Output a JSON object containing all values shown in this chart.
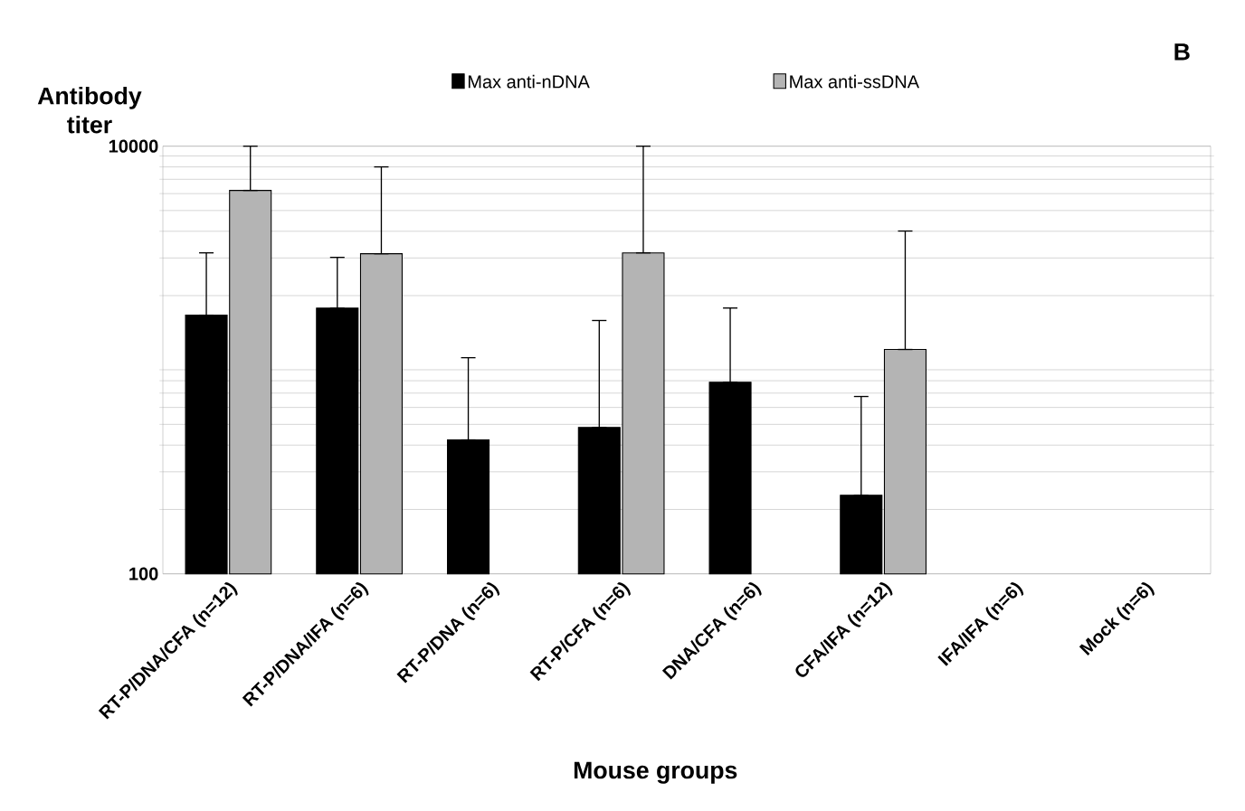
{
  "chart_data": {
    "type": "bar",
    "ylabel": "Antibody titer",
    "xlabel": "Mouse groups",
    "categories": [
      "RT-P/DNA/CFA (n=12)",
      "RT-P/DNA/IFA  (n=6)",
      "RT-P/DNA  (n=6)",
      "RT-P/CFA  (n=6)",
      "DNA/CFA (n=6)",
      "CFA/IFA (n=12)",
      "IFA/IFA (n=6)",
      "Mock (n=6)"
    ],
    "series": [
      {
        "name": "Max anti-nDNA",
        "color": "#000000",
        "values": [
          1620,
          1750,
          423,
          484,
          787,
          233,
          null,
          null
        ],
        "errors": [
          [
            1620,
            3170
          ],
          [
            1750,
            3020
          ],
          [
            423,
            1025
          ],
          [
            484,
            1530
          ],
          [
            787,
            1750
          ],
          [
            233,
            675
          ],
          null,
          null
        ]
      },
      {
        "name": "Max anti-ssDNA",
        "color": "#b4b4b4",
        "values": [
          6210,
          3140,
          null,
          3170,
          null,
          1120,
          null,
          null
        ],
        "errors": [
          [
            6210,
            10000
          ],
          [
            3140,
            8000
          ],
          null,
          [
            3170,
            10000
          ],
          null,
          [
            1120,
            4010
          ],
          null,
          null
        ]
      }
    ],
    "ylim": [
      100,
      10000
    ],
    "yticks": [
      100,
      10000
    ],
    "log": "y",
    "grid": "y",
    "legend": "top",
    "annotations": [
      "B"
    ]
  }
}
